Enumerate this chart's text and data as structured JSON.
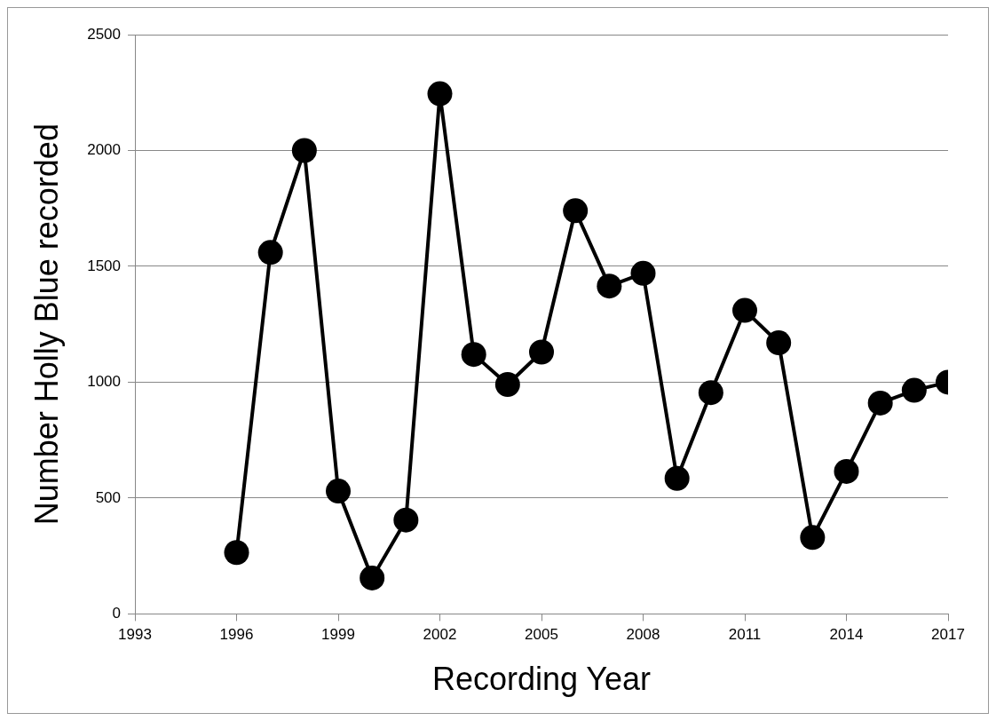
{
  "chart_data": {
    "type": "line",
    "xlabel": "Recording Year",
    "ylabel": "Number Holly Blue recorded",
    "x": [
      1996,
      1997,
      1998,
      1999,
      2000,
      2001,
      2002,
      2003,
      2004,
      2005,
      2006,
      2007,
      2008,
      2009,
      2010,
      2011,
      2012,
      2013,
      2014,
      2015,
      2016,
      2017
    ],
    "series": [
      {
        "color": "#000000",
        "values": [
          265,
          1560,
          2000,
          530,
          155,
          405,
          2245,
          1120,
          990,
          1130,
          1740,
          1415,
          1470,
          585,
          955,
          1310,
          1170,
          330,
          615,
          910,
          965,
          1000
        ]
      }
    ],
    "xlim": [
      1993,
      2017
    ],
    "xticks": [
      1993,
      1996,
      1999,
      2002,
      2005,
      2008,
      2011,
      2014,
      2017
    ],
    "ylim": [
      0,
      2500
    ],
    "yticks": [
      0,
      500,
      1000,
      1500,
      2000,
      2500
    ],
    "grid": "y",
    "marker": "circle",
    "line_style": "solid"
  }
}
